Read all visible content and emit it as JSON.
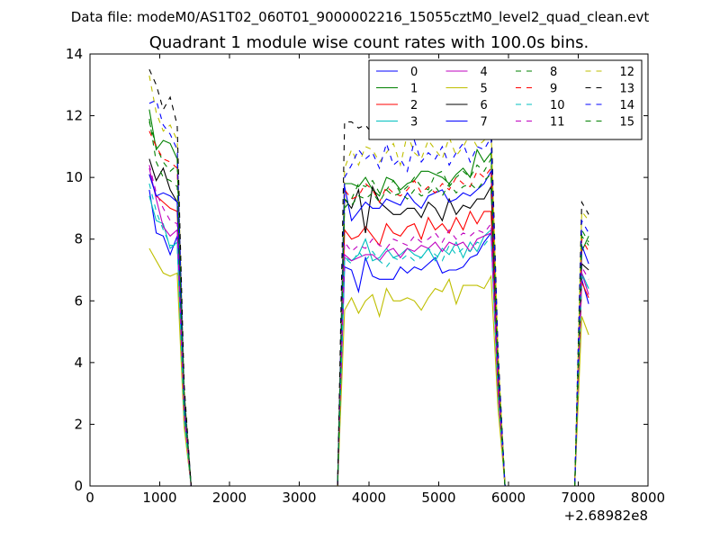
{
  "suptitle": "Data file: modeM0/AS1T02_060T01_9000002216_15055cztM0_level2_quad_clean.evt",
  "chart_data": {
    "type": "line",
    "title": "Quadrant 1 module wise count rates with 100.0s bins.",
    "xlabel": "",
    "ylabel": "",
    "x_offset_label": "+2.68982e8",
    "xlim": [
      0,
      8000
    ],
    "ylim": [
      0,
      14
    ],
    "xticks": [
      0,
      1000,
      2000,
      3000,
      4000,
      5000,
      6000,
      7000,
      8000
    ],
    "yticks": [
      0,
      2,
      4,
      6,
      8,
      10,
      12,
      14
    ],
    "grid": false,
    "legend_position": "top-right",
    "legend_columns": 4,
    "x": [
      850,
      950,
      1050,
      1150,
      1250,
      1350,
      1450,
      1550,
      1650,
      1750,
      1850,
      1950,
      2050,
      2150,
      2250,
      2350,
      2450,
      2550,
      2650,
      2750,
      2850,
      2950,
      3050,
      3150,
      3250,
      3350,
      3450,
      3550,
      3650,
      3750,
      3850,
      3950,
      4050,
      4150,
      4250,
      4350,
      4450,
      4550,
      4650,
      4750,
      4850,
      4950,
      5050,
      5150,
      5250,
      5350,
      5450,
      5550,
      5650,
      5750,
      5850,
      5950,
      6050,
      6150,
      6250,
      6350,
      6450,
      6550,
      6650,
      6750,
      6850,
      6950,
      7050,
      7150
    ],
    "series": [
      {
        "name": "0",
        "color": "#0000ff",
        "dash": false,
        "values": [
          9.6,
          8.2,
          8.1,
          7.5,
          8.1,
          2.0,
          0.0,
          0.0,
          0.0,
          0.0,
          0.0,
          0.0,
          0.0,
          0.0,
          0.0,
          0.0,
          0.0,
          0.0,
          0.0,
          0.0,
          0.0,
          0.0,
          0.0,
          0.0,
          0.0,
          0.0,
          0.0,
          0.0,
          7.1,
          7.0,
          6.3,
          7.4,
          6.8,
          6.7,
          6.7,
          6.7,
          7.1,
          6.9,
          7.1,
          7.0,
          7.2,
          7.4,
          6.9,
          7.0,
          7.0,
          7.1,
          7.4,
          7.5,
          7.9,
          8.2,
          3.0,
          0.0,
          0.0,
          0.0,
          0.0,
          0.0,
          0.0,
          0.0,
          0.0,
          0.0,
          0.0,
          0.0,
          6.7,
          5.9
        ]
      },
      {
        "name": "1",
        "color": "#008000",
        "dash": false,
        "values": [
          12.2,
          10.9,
          11.2,
          11.1,
          10.6,
          2.8,
          0.0,
          0.0,
          0.0,
          0.0,
          0.0,
          0.0,
          0.0,
          0.0,
          0.0,
          0.0,
          0.0,
          0.0,
          0.0,
          0.0,
          0.0,
          0.0,
          0.0,
          0.0,
          0.0,
          0.0,
          0.0,
          0.0,
          9.8,
          9.8,
          9.7,
          10.0,
          9.6,
          9.4,
          10.0,
          9.9,
          9.6,
          9.8,
          9.9,
          10.2,
          10.2,
          10.1,
          10.0,
          9.8,
          10.1,
          10.3,
          10.0,
          10.9,
          10.5,
          10.8,
          4.1,
          0.0,
          0.0,
          0.0,
          0.0,
          0.0,
          0.0,
          0.0,
          0.0,
          0.0,
          0.0,
          0.0,
          7.6,
          8.1
        ]
      },
      {
        "name": "2",
        "color": "#ff0000",
        "dash": false,
        "values": [
          10.1,
          9.4,
          9.2,
          9.0,
          8.9,
          2.6,
          0.0,
          0.0,
          0.0,
          0.0,
          0.0,
          0.0,
          0.0,
          0.0,
          0.0,
          0.0,
          0.0,
          0.0,
          0.0,
          0.0,
          0.0,
          0.0,
          0.0,
          0.0,
          0.0,
          0.0,
          0.0,
          0.0,
          8.3,
          8.0,
          8.1,
          8.4,
          8.1,
          7.8,
          8.5,
          8.2,
          8.1,
          8.4,
          8.5,
          8.0,
          8.7,
          8.3,
          8.5,
          8.2,
          8.7,
          8.3,
          8.9,
          8.5,
          8.9,
          8.9,
          3.3,
          0.0,
          0.0,
          0.0,
          0.0,
          0.0,
          0.0,
          0.0,
          0.0,
          0.0,
          0.0,
          0.0,
          6.6,
          6.1
        ]
      },
      {
        "name": "3",
        "color": "#00bfbf",
        "dash": false,
        "values": [
          9.4,
          8.6,
          8.5,
          7.7,
          7.9,
          2.2,
          0.0,
          0.0,
          0.0,
          0.0,
          0.0,
          0.0,
          0.0,
          0.0,
          0.0,
          0.0,
          0.0,
          0.0,
          0.0,
          0.0,
          0.0,
          0.0,
          0.0,
          0.0,
          0.0,
          0.0,
          0.0,
          0.0,
          7.4,
          7.3,
          7.5,
          8.0,
          7.3,
          7.4,
          7.7,
          7.4,
          7.5,
          7.7,
          7.5,
          7.4,
          7.7,
          7.3,
          7.7,
          7.5,
          7.9,
          7.4,
          7.9,
          7.6,
          8.1,
          8.3,
          3.1,
          0.0,
          0.0,
          0.0,
          0.0,
          0.0,
          0.0,
          0.0,
          0.0,
          0.0,
          0.0,
          0.0,
          6.9,
          6.4
        ]
      },
      {
        "name": "4",
        "color": "#bf00bf",
        "dash": false,
        "values": [
          10.3,
          9.3,
          8.4,
          8.1,
          8.3,
          2.3,
          0.0,
          0.0,
          0.0,
          0.0,
          0.0,
          0.0,
          0.0,
          0.0,
          0.0,
          0.0,
          0.0,
          0.0,
          0.0,
          0.0,
          0.0,
          0.0,
          0.0,
          0.0,
          0.0,
          0.0,
          0.0,
          0.0,
          7.5,
          7.3,
          7.4,
          7.5,
          7.5,
          7.3,
          7.6,
          7.7,
          7.4,
          7.7,
          7.6,
          7.8,
          7.7,
          7.9,
          7.6,
          7.9,
          7.8,
          7.9,
          7.6,
          8.0,
          8.1,
          8.2,
          3.1,
          0.0,
          0.0,
          0.0,
          0.0,
          0.0,
          0.0,
          0.0,
          0.0,
          0.0,
          0.0,
          0.0,
          6.9,
          6.2
        ]
      },
      {
        "name": "5",
        "color": "#bfbf00",
        "dash": false,
        "values": [
          7.7,
          7.3,
          6.9,
          6.8,
          6.9,
          1.9,
          0.0,
          0.0,
          0.0,
          0.0,
          0.0,
          0.0,
          0.0,
          0.0,
          0.0,
          0.0,
          0.0,
          0.0,
          0.0,
          0.0,
          0.0,
          0.0,
          0.0,
          0.0,
          0.0,
          0.0,
          0.0,
          0.0,
          5.7,
          6.1,
          5.6,
          6.0,
          6.2,
          5.5,
          6.4,
          6.0,
          6.0,
          6.1,
          6.0,
          5.7,
          6.1,
          6.4,
          6.3,
          6.7,
          5.9,
          6.5,
          6.5,
          6.5,
          6.4,
          6.8,
          2.5,
          0.0,
          0.0,
          0.0,
          0.0,
          0.0,
          0.0,
          0.0,
          0.0,
          0.0,
          0.0,
          0.0,
          5.5,
          4.9
        ]
      },
      {
        "name": "6",
        "color": "#000000",
        "dash": false,
        "values": [
          10.6,
          9.9,
          10.3,
          9.6,
          9.2,
          2.7,
          0.0,
          0.0,
          0.0,
          0.0,
          0.0,
          0.0,
          0.0,
          0.0,
          0.0,
          0.0,
          0.0,
          0.0,
          0.0,
          0.0,
          0.0,
          0.0,
          0.0,
          0.0,
          0.0,
          0.0,
          0.0,
          0.0,
          9.3,
          9.0,
          9.6,
          8.2,
          9.7,
          9.2,
          9.0,
          8.8,
          8.8,
          9.0,
          9.0,
          8.7,
          9.2,
          9.0,
          8.6,
          9.3,
          8.8,
          9.1,
          9.0,
          9.3,
          9.3,
          9.7,
          3.6,
          0.0,
          0.0,
          0.0,
          0.0,
          0.0,
          0.0,
          0.0,
          0.0,
          0.0,
          0.0,
          0.0,
          7.2,
          7.0
        ]
      },
      {
        "name": "7",
        "color": "#0000ff",
        "dash": false,
        "values": [
          10.1,
          9.4,
          9.5,
          9.4,
          9.2,
          2.6,
          0.0,
          0.0,
          0.0,
          0.0,
          0.0,
          0.0,
          0.0,
          0.0,
          0.0,
          0.0,
          0.0,
          0.0,
          0.0,
          0.0,
          0.0,
          0.0,
          0.0,
          0.0,
          0.0,
          0.0,
          0.0,
          0.0,
          9.7,
          8.6,
          8.9,
          9.2,
          9.0,
          9.0,
          9.3,
          9.2,
          9.1,
          9.5,
          9.2,
          9.0,
          9.4,
          9.5,
          9.6,
          9.2,
          9.3,
          9.5,
          9.4,
          9.6,
          9.8,
          10.2,
          3.8,
          0.0,
          0.0,
          0.0,
          0.0,
          0.0,
          0.0,
          0.0,
          0.0,
          0.0,
          0.0,
          0.0,
          7.8,
          7.2
        ]
      },
      {
        "name": "8",
        "color": "#008000",
        "dash": true,
        "values": [
          11.8,
          11.0,
          10.5,
          10.2,
          10.4,
          2.9,
          0.0,
          0.0,
          0.0,
          0.0,
          0.0,
          0.0,
          0.0,
          0.0,
          0.0,
          0.0,
          0.0,
          0.0,
          0.0,
          0.0,
          0.0,
          0.0,
          0.0,
          0.0,
          0.0,
          0.0,
          0.0,
          0.0,
          9.0,
          9.3,
          9.8,
          9.7,
          9.9,
          9.5,
          9.6,
          9.9,
          9.5,
          9.7,
          10.0,
          9.7,
          9.6,
          10.1,
          10.2,
          9.7,
          10.0,
          10.2,
          10.0,
          10.4,
          10.2,
          10.6,
          4.0,
          0.0,
          0.0,
          0.0,
          0.0,
          0.0,
          0.0,
          0.0,
          0.0,
          0.0,
          0.0,
          0.0,
          8.3,
          7.9
        ]
      },
      {
        "name": "9",
        "color": "#ff0000",
        "dash": true,
        "values": [
          11.5,
          11.0,
          10.6,
          10.5,
          10.3,
          2.9,
          0.0,
          0.0,
          0.0,
          0.0,
          0.0,
          0.0,
          0.0,
          0.0,
          0.0,
          0.0,
          0.0,
          0.0,
          0.0,
          0.0,
          0.0,
          0.0,
          0.0,
          0.0,
          0.0,
          0.0,
          0.0,
          0.0,
          9.6,
          9.3,
          9.4,
          9.8,
          9.6,
          9.2,
          9.7,
          9.5,
          9.4,
          9.6,
          9.9,
          9.5,
          9.7,
          9.5,
          9.8,
          9.6,
          10.0,
          9.8,
          9.7,
          10.2,
          10.0,
          10.3,
          3.9,
          0.0,
          0.0,
          0.0,
          0.0,
          0.0,
          0.0,
          0.0,
          0.0,
          0.0,
          0.0,
          0.0,
          8.0,
          7.6
        ]
      },
      {
        "name": "10",
        "color": "#00bfbf",
        "dash": true,
        "values": [
          9.8,
          8.9,
          8.3,
          7.8,
          7.8,
          2.2,
          0.0,
          0.0,
          0.0,
          0.0,
          0.0,
          0.0,
          0.0,
          0.0,
          0.0,
          0.0,
          0.0,
          0.0,
          0.0,
          0.0,
          0.0,
          0.0,
          0.0,
          0.0,
          0.0,
          0.0,
          0.0,
          0.0,
          7.4,
          7.2,
          7.6,
          7.3,
          7.6,
          7.3,
          7.1,
          7.4,
          7.3,
          7.5,
          7.3,
          7.4,
          7.7,
          7.5,
          7.3,
          7.8,
          7.5,
          7.7,
          7.6,
          7.9,
          7.8,
          8.1,
          3.0,
          0.0,
          0.0,
          0.0,
          0.0,
          0.0,
          0.0,
          0.0,
          0.0,
          0.0,
          0.0,
          0.0,
          6.8,
          6.4
        ]
      },
      {
        "name": "11",
        "color": "#bf00bf",
        "dash": true,
        "values": [
          10.4,
          9.5,
          9.0,
          8.6,
          8.5,
          2.4,
          0.0,
          0.0,
          0.0,
          0.0,
          0.0,
          0.0,
          0.0,
          0.0,
          0.0,
          0.0,
          0.0,
          0.0,
          0.0,
          0.0,
          0.0,
          0.0,
          0.0,
          0.0,
          0.0,
          0.0,
          0.0,
          0.0,
          7.9,
          7.6,
          7.8,
          7.7,
          8.0,
          7.8,
          7.7,
          8.0,
          7.9,
          7.8,
          8.1,
          7.9,
          8.0,
          8.2,
          7.9,
          8.3,
          8.0,
          8.2,
          8.1,
          8.3,
          8.2,
          8.5,
          3.2,
          0.0,
          0.0,
          0.0,
          0.0,
          0.0,
          0.0,
          0.0,
          0.0,
          0.0,
          0.0,
          0.0,
          7.1,
          6.7
        ]
      },
      {
        "name": "12",
        "color": "#bfbf00",
        "dash": true,
        "values": [
          13.3,
          12.1,
          11.5,
          11.7,
          11.2,
          3.2,
          0.0,
          0.0,
          0.0,
          0.0,
          0.0,
          0.0,
          0.0,
          0.0,
          0.0,
          0.0,
          0.0,
          0.0,
          0.0,
          0.0,
          0.0,
          0.0,
          0.0,
          0.0,
          0.0,
          0.0,
          0.0,
          0.0,
          10.3,
          10.9,
          10.4,
          11.0,
          10.9,
          10.5,
          10.8,
          11.1,
          10.4,
          11.4,
          10.8,
          10.6,
          11.2,
          10.9,
          10.6,
          11.3,
          10.7,
          11.0,
          11.4,
          11.0,
          11.2,
          11.6,
          4.3,
          0.0,
          0.0,
          0.0,
          0.0,
          0.0,
          0.0,
          0.0,
          0.0,
          0.0,
          0.0,
          0.0,
          8.9,
          8.6
        ]
      },
      {
        "name": "13",
        "color": "#000000",
        "dash": true,
        "values": [
          13.5,
          13.0,
          12.2,
          12.6,
          11.7,
          3.3,
          0.0,
          0.0,
          0.0,
          0.0,
          0.0,
          0.0,
          0.0,
          0.0,
          0.0,
          0.0,
          0.0,
          0.0,
          0.0,
          0.0,
          0.0,
          0.0,
          0.0,
          0.0,
          0.0,
          0.0,
          0.0,
          0.0,
          11.8,
          11.8,
          11.6,
          11.7,
          11.4,
          11.8,
          11.5,
          11.7,
          11.6,
          11.8,
          11.5,
          11.9,
          11.6,
          11.7,
          11.7,
          11.8,
          11.6,
          11.9,
          11.7,
          11.8,
          11.7,
          11.9,
          4.4,
          0.0,
          0.0,
          0.0,
          0.0,
          0.0,
          0.0,
          0.0,
          0.0,
          0.0,
          0.0,
          0.0,
          9.2,
          8.8
        ]
      },
      {
        "name": "14",
        "color": "#0000ff",
        "dash": true,
        "values": [
          12.4,
          12.5,
          11.7,
          11.4,
          10.9,
          3.0,
          0.0,
          0.0,
          0.0,
          0.0,
          0.0,
          0.0,
          0.0,
          0.0,
          0.0,
          0.0,
          0.0,
          0.0,
          0.0,
          0.0,
          0.0,
          0.0,
          0.0,
          0.0,
          0.0,
          0.0,
          0.0,
          0.0,
          10.0,
          10.4,
          10.9,
          10.6,
          10.8,
          10.3,
          11.1,
          10.4,
          10.6,
          10.2,
          11.2,
          10.5,
          10.8,
          10.6,
          11.0,
          10.4,
          10.8,
          11.1,
          10.5,
          11.0,
          10.9,
          11.3,
          4.2,
          0.0,
          0.0,
          0.0,
          0.0,
          0.0,
          0.0,
          0.0,
          0.0,
          0.0,
          0.0,
          0.0,
          8.6,
          8.2
        ]
      },
      {
        "name": "15",
        "color": "#008000",
        "dash": true,
        "values": [
          11.9,
          10.5,
          10.0,
          9.9,
          9.7,
          2.8,
          0.0,
          0.0,
          0.0,
          0.0,
          0.0,
          0.0,
          0.0,
          0.0,
          0.0,
          0.0,
          0.0,
          0.0,
          0.0,
          0.0,
          0.0,
          0.0,
          0.0,
          0.0,
          0.0,
          0.0,
          0.0,
          0.0,
          9.3,
          9.1,
          9.4,
          9.3,
          9.5,
          9.2,
          9.6,
          9.4,
          9.5,
          9.3,
          9.6,
          9.4,
          9.5,
          9.7,
          9.4,
          9.8,
          9.5,
          9.7,
          9.8,
          9.6,
          9.9,
          10.1,
          3.8,
          0.0,
          0.0,
          0.0,
          0.0,
          0.0,
          0.0,
          0.0,
          0.0,
          0.0,
          0.0,
          0.0,
          8.1,
          7.8
        ]
      }
    ]
  }
}
